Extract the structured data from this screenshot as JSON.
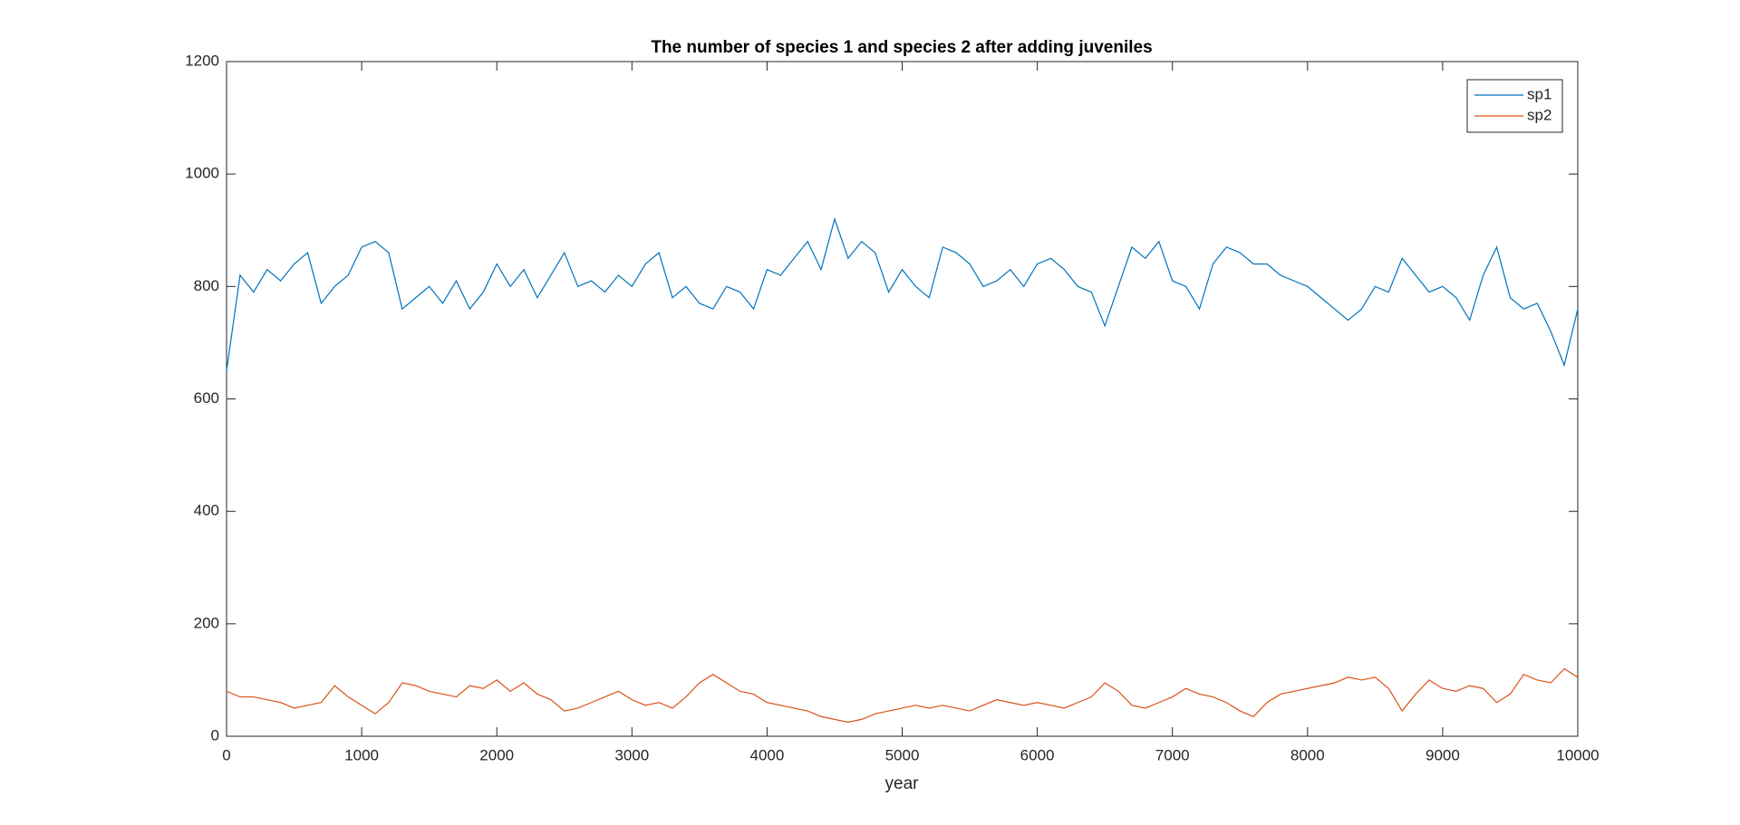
{
  "chart_data": {
    "type": "line",
    "title": "The number of species 1 and species 2 after adding juveniles",
    "x_label": "year",
    "x": [
      0,
      100,
      200,
      300,
      400,
      500,
      600,
      700,
      800,
      900,
      1000,
      1100,
      1200,
      1300,
      1400,
      1500,
      1600,
      1700,
      1800,
      1900,
      2000,
      2100,
      2200,
      2300,
      2400,
      2500,
      2600,
      2700,
      2800,
      2900,
      3000,
      3100,
      3200,
      3300,
      3400,
      3500,
      3600,
      3700,
      3800,
      3900,
      4000,
      4100,
      4200,
      4300,
      4400,
      4500,
      4600,
      4700,
      4800,
      4900,
      5000,
      5100,
      5200,
      5300,
      5400,
      5500,
      5600,
      5700,
      5800,
      5900,
      6000,
      6100,
      6200,
      6300,
      6400,
      6500,
      6600,
      6700,
      6800,
      6900,
      7000,
      7100,
      7200,
      7300,
      7400,
      7500,
      7600,
      7700,
      7800,
      7900,
      8000,
      8100,
      8200,
      8300,
      8400,
      8500,
      8600,
      8700,
      8800,
      8900,
      9000,
      9100,
      9200,
      9300,
      9400,
      9500,
      9600,
      9700,
      9800,
      9900,
      10000
    ],
    "series": [
      {
        "name": "sp1",
        "color": "#0072bd",
        "values": [
          650,
          820,
          790,
          830,
          810,
          840,
          860,
          770,
          800,
          820,
          870,
          880,
          860,
          760,
          780,
          800,
          770,
          810,
          760,
          790,
          840,
          800,
          830,
          780,
          820,
          860,
          800,
          810,
          790,
          820,
          800,
          840,
          860,
          780,
          800,
          770,
          760,
          800,
          790,
          760,
          830,
          820,
          850,
          880,
          830,
          920,
          850,
          880,
          860,
          790,
          830,
          800,
          780,
          870,
          860,
          840,
          800,
          810,
          830,
          800,
          840,
          850,
          830,
          800,
          790,
          730,
          800,
          870,
          850,
          880,
          810,
          800,
          760,
          840,
          870,
          860,
          840,
          840,
          820,
          810,
          800,
          780,
          760,
          740,
          760,
          800,
          790,
          850,
          820,
          790,
          800,
          780,
          740,
          820,
          870,
          780,
          760,
          770,
          720,
          660,
          760
        ]
      },
      {
        "name": "sp2",
        "color": "#d95319",
        "values": [
          80,
          70,
          70,
          65,
          60,
          50,
          55,
          60,
          90,
          70,
          55,
          40,
          60,
          95,
          90,
          80,
          75,
          70,
          90,
          85,
          100,
          80,
          95,
          75,
          65,
          45,
          50,
          60,
          70,
          80,
          65,
          55,
          60,
          50,
          70,
          95,
          110,
          95,
          80,
          75,
          60,
          55,
          50,
          45,
          35,
          30,
          25,
          30,
          40,
          45,
          50,
          55,
          50,
          55,
          50,
          45,
          55,
          65,
          60,
          55,
          60,
          55,
          50,
          60,
          70,
          95,
          80,
          55,
          50,
          60,
          70,
          85,
          75,
          70,
          60,
          45,
          35,
          60,
          75,
          80,
          85,
          90,
          95,
          105,
          100,
          105,
          85,
          45,
          75,
          100,
          85,
          80,
          90,
          85,
          60,
          75,
          110,
          100,
          95,
          120,
          105
        ]
      }
    ],
    "xlim": [
      0,
      10000
    ],
    "xticks": [
      0,
      1000,
      2000,
      3000,
      4000,
      5000,
      6000,
      7000,
      8000,
      9000,
      10000
    ],
    "ylim": [
      0,
      1200
    ],
    "yticks": [
      0,
      200,
      400,
      600,
      800,
      1000,
      1200
    ],
    "grid": false,
    "legend_position": "upper-right"
  }
}
